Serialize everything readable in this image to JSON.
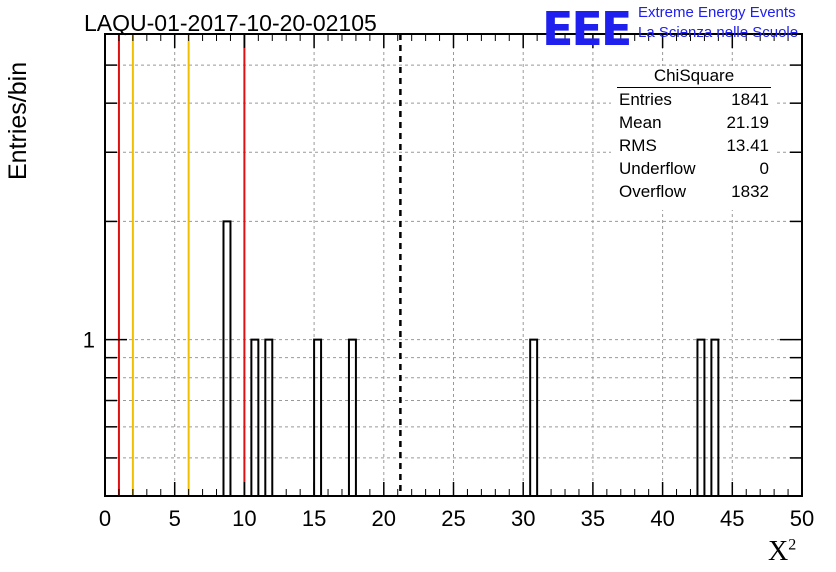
{
  "header": {
    "title": "LAQU-01-2017-10-20-02105",
    "logo_text": "EEE",
    "logo_line1": "Extreme Energy Events",
    "logo_line2": "La Scienza nelle Scuole"
  },
  "stats_box": {
    "name": "ChiSquare",
    "rows": [
      {
        "label": "Entries",
        "value": "1841"
      },
      {
        "label": "Mean",
        "value": "21.19"
      },
      {
        "label": "RMS",
        "value": "13.41"
      },
      {
        "label": "Underflow",
        "value": "0"
      },
      {
        "label": "Overflow",
        "value": "1832"
      }
    ]
  },
  "chart_data": {
    "type": "bar",
    "title": "LAQU-01-2017-10-20-02105",
    "xlabel": "X",
    "xlabel_superscript": "2",
    "ylabel": "Entries/bin",
    "xlim": [
      0,
      50
    ],
    "ylim": [
      0.4,
      6
    ],
    "yscale": "log",
    "grid": true,
    "x_ticks": [
      "0",
      "5",
      "10",
      "15",
      "20",
      "25",
      "30",
      "35",
      "40",
      "45",
      "50"
    ],
    "y_tick_labels": [
      {
        "value": 1,
        "label": "1"
      }
    ],
    "bin_width": 0.5,
    "bins": [
      {
        "x": 8.5,
        "value": 2
      },
      {
        "x": 10.5,
        "value": 1
      },
      {
        "x": 11.5,
        "value": 1
      },
      {
        "x": 15.0,
        "value": 1
      },
      {
        "x": 17.5,
        "value": 1
      },
      {
        "x": 30.5,
        "value": 1
      },
      {
        "x": 42.5,
        "value": 1
      },
      {
        "x": 43.5,
        "value": 1
      }
    ],
    "vertical_lines": [
      {
        "x": 1,
        "color": "#dd1111",
        "style": "solid"
      },
      {
        "x": 2,
        "color": "#f0c000",
        "style": "solid"
      },
      {
        "x": 6,
        "color": "#f0c000",
        "style": "solid"
      },
      {
        "x": 10,
        "color": "#dd1111",
        "style": "solid"
      },
      {
        "x": 21.19,
        "color": "#000000",
        "style": "dashed"
      }
    ],
    "colors": {
      "histogram": "#000000",
      "grid": "#999999"
    }
  }
}
